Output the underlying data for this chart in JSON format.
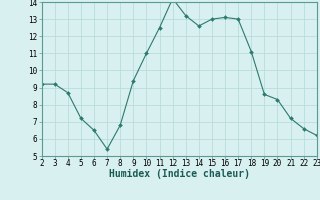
{
  "x": [
    2,
    3,
    4,
    5,
    6,
    7,
    8,
    9,
    10,
    11,
    12,
    13,
    14,
    15,
    16,
    17,
    18,
    19,
    20,
    21,
    22,
    23
  ],
  "y": [
    9.2,
    9.2,
    8.7,
    7.2,
    6.5,
    5.4,
    6.8,
    9.4,
    11.0,
    12.5,
    14.2,
    13.2,
    12.6,
    13.0,
    13.1,
    13.0,
    11.1,
    8.6,
    8.3,
    7.2,
    6.6,
    6.2
  ],
  "line_color": "#2d7a6e",
  "marker_color": "#2d7a6e",
  "bg_color": "#d8f0ef",
  "grid_color": "#b8dcda",
  "grid_minor_color": "#cce8e6",
  "xlabel": "Humidex (Indice chaleur)",
  "xlim": [
    2,
    23
  ],
  "ylim": [
    5,
    14
  ],
  "xticks": [
    2,
    3,
    4,
    5,
    6,
    7,
    8,
    9,
    10,
    11,
    12,
    13,
    14,
    15,
    16,
    17,
    18,
    19,
    20,
    21,
    22,
    23
  ],
  "yticks": [
    5,
    6,
    7,
    8,
    9,
    10,
    11,
    12,
    13,
    14
  ],
  "tick_fontsize": 5.5,
  "xlabel_fontsize": 7.0,
  "spine_color": "#5a9a94"
}
